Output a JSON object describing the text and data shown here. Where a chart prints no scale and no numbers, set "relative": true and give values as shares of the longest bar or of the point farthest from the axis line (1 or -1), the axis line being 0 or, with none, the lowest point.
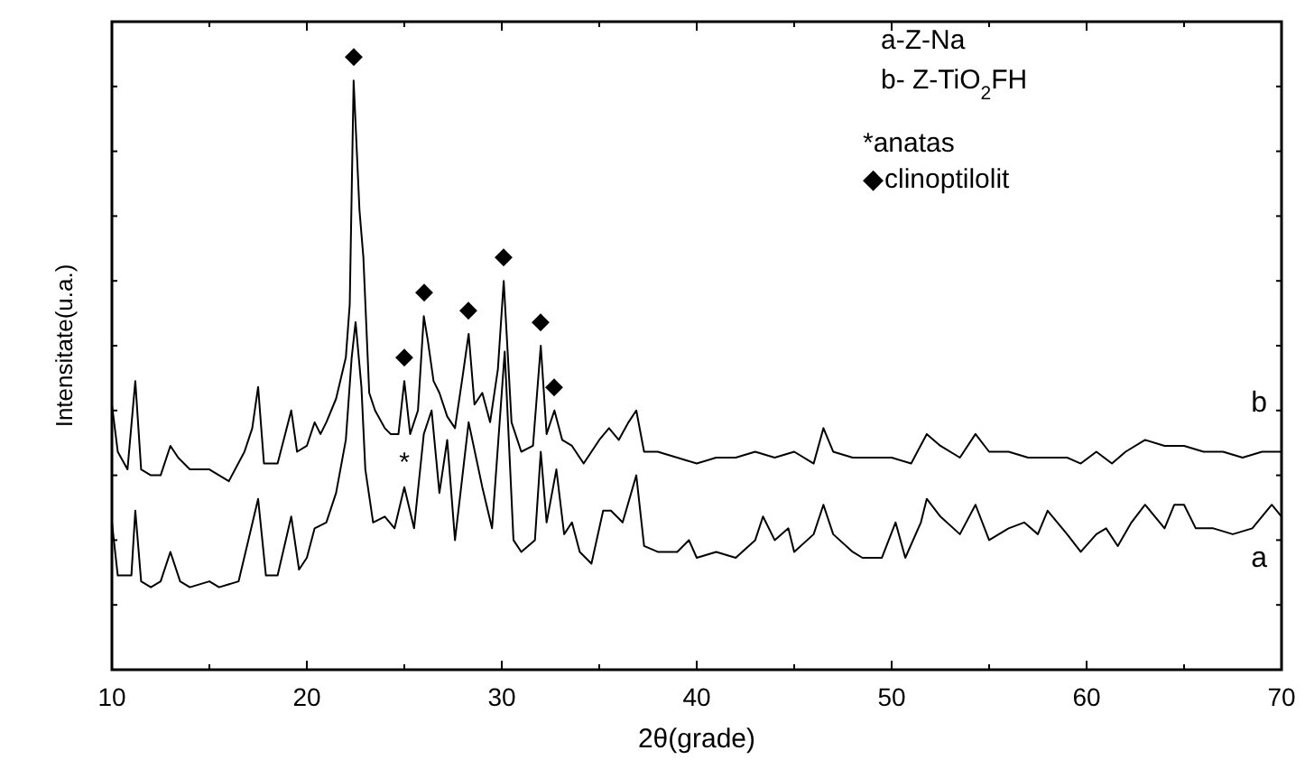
{
  "chart_data": {
    "type": "line",
    "relative": true,
    "xlabel": "2θ(grade)",
    "ylabel": "Intensitate(u.a.)",
    "xlim": [
      10,
      70
    ],
    "xticks": [
      10,
      {
        "value": 15,
        "label": null
      },
      20,
      {
        "value": 25,
        "label": null
      },
      30,
      {
        "value": 35,
        "label": null
      },
      40,
      {
        "value": 45,
        "label": null
      },
      50,
      {
        "value": 55,
        "label": null
      },
      60,
      {
        "value": 65,
        "label": null
      },
      70
    ],
    "tick_labels": "x",
    "grid": false,
    "legend": "right",
    "line_style": "solid",
    "series": [
      {
        "name": "b",
        "color": "#000000",
        "x": [
          10,
          10.3,
          10.8,
          11.2,
          11.5,
          12,
          12.5,
          13,
          13.4,
          14,
          15,
          16,
          16.8,
          17.2,
          17.5,
          17.8,
          18.5,
          19.2,
          19.5,
          20,
          20.4,
          20.7,
          21,
          21.5,
          22,
          22.2,
          22.4,
          22.7,
          22.9,
          23.2,
          23.5,
          24,
          24.3,
          24.7,
          25,
          25.3,
          25.7,
          26,
          26.2,
          26.5,
          26.8,
          27.2,
          27.6,
          28,
          28.3,
          28.6,
          29,
          29.4,
          29.8,
          30.1,
          30.5,
          31,
          31.6,
          32,
          32.3,
          32.7,
          33.1,
          33.6,
          34.2,
          35,
          35.5,
          36,
          36.5,
          36.9,
          37.3,
          38,
          39,
          40,
          41,
          42,
          43,
          44,
          45,
          46,
          46.5,
          47,
          48,
          49,
          50,
          51,
          51.8,
          52.5,
          53.5,
          54.3,
          55,
          56,
          57,
          58,
          59,
          59.7,
          60.5,
          61.3,
          62,
          63,
          64,
          65,
          66,
          67,
          68,
          69,
          70
        ],
        "values": [
          0.45,
          0.37,
          0.34,
          0.49,
          0.34,
          0.33,
          0.33,
          0.38,
          0.36,
          0.34,
          0.34,
          0.32,
          0.37,
          0.41,
          0.48,
          0.35,
          0.35,
          0.44,
          0.37,
          0.38,
          0.42,
          0.4,
          0.42,
          0.46,
          0.53,
          0.62,
          1,
          0.78,
          0.7,
          0.47,
          0.44,
          0.41,
          0.4,
          0.4,
          0.49,
          0.4,
          0.44,
          0.6,
          0.56,
          0.49,
          0.47,
          0.43,
          0.41,
          0.5,
          0.57,
          0.45,
          0.47,
          0.42,
          0.51,
          0.66,
          0.42,
          0.37,
          0.38,
          0.55,
          0.4,
          0.44,
          0.39,
          0.38,
          0.35,
          0.39,
          0.41,
          0.39,
          0.42,
          0.44,
          0.37,
          0.37,
          0.36,
          0.35,
          0.36,
          0.36,
          0.37,
          0.36,
          0.37,
          0.35,
          0.41,
          0.37,
          0.36,
          0.36,
          0.36,
          0.35,
          0.4,
          0.38,
          0.36,
          0.4,
          0.37,
          0.37,
          0.36,
          0.36,
          0.36,
          0.35,
          0.37,
          0.35,
          0.37,
          0.39,
          0.38,
          0.38,
          0.37,
          0.37,
          0.36,
          0.37,
          0.37
        ]
      },
      {
        "name": "a",
        "color": "#000000",
        "x": [
          10,
          10.3,
          11,
          11.2,
          11.5,
          12,
          12.5,
          13,
          13.5,
          14,
          15,
          15.5,
          16.5,
          17,
          17.5,
          17.9,
          18.5,
          19.2,
          19.6,
          20,
          20.4,
          21,
          21.5,
          22,
          22.3,
          22.5,
          22.8,
          23,
          23.4,
          24,
          24.5,
          25,
          25.5,
          26,
          26.4,
          26.8,
          27.2,
          27.6,
          28.3,
          29,
          29.5,
          30.15,
          30.6,
          31,
          31.7,
          32,
          32.3,
          32.8,
          33.2,
          33.6,
          34,
          34.6,
          35.2,
          35.6,
          36.2,
          36.9,
          37.3,
          38,
          39,
          39.6,
          40,
          41,
          42,
          43,
          43.4,
          44,
          44.7,
          45,
          46,
          46.5,
          47,
          48,
          48.5,
          49.5,
          50.2,
          50.7,
          51.5,
          51.8,
          52.5,
          53.5,
          54.3,
          55,
          56,
          56.8,
          57.5,
          58,
          59,
          59.7,
          60.5,
          61,
          61.6,
          62.3,
          63,
          64,
          64.5,
          65,
          65.6,
          66.5,
          67.5,
          68.5,
          69.5,
          70
        ],
        "values": [
          0.25,
          0.16,
          0.16,
          0.27,
          0.15,
          0.14,
          0.15,
          0.2,
          0.15,
          0.14,
          0.15,
          0.14,
          0.15,
          0.22,
          0.29,
          0.16,
          0.16,
          0.26,
          0.17,
          0.19,
          0.24,
          0.25,
          0.3,
          0.39,
          0.53,
          0.59,
          0.48,
          0.34,
          0.25,
          0.26,
          0.24,
          0.31,
          0.24,
          0.4,
          0.44,
          0.3,
          0.39,
          0.22,
          0.42,
          0.31,
          0.24,
          0.54,
          0.22,
          0.2,
          0.22,
          0.37,
          0.25,
          0.34,
          0.23,
          0.25,
          0.2,
          0.18,
          0.27,
          0.27,
          0.25,
          0.33,
          0.21,
          0.2,
          0.2,
          0.22,
          0.19,
          0.2,
          0.19,
          0.22,
          0.26,
          0.22,
          0.24,
          0.2,
          0.23,
          0.28,
          0.23,
          0.2,
          0.19,
          0.19,
          0.25,
          0.19,
          0.25,
          0.29,
          0.26,
          0.23,
          0.28,
          0.22,
          0.24,
          0.25,
          0.23,
          0.27,
          0.23,
          0.2,
          0.23,
          0.24,
          0.21,
          0.25,
          0.28,
          0.24,
          0.28,
          0.28,
          0.24,
          0.24,
          0.23,
          0.24,
          0.28,
          0.26
        ]
      }
    ],
    "annotations": [
      "a-Z-Na",
      "b- Z-TiO$_{2}$FH",
      "*anatas",
      "◆clinoptilolit",
      {
        "text": "◆",
        "x": 22.4,
        "y": 1
      },
      {
        "text": "◆",
        "x": 25,
        "y": 0.49
      },
      {
        "text": "◆",
        "x": 26,
        "y": 0.6
      },
      {
        "text": "◆",
        "x": 28.3,
        "y": 0.57
      },
      {
        "text": "◆",
        "x": 30.1,
        "y": 0.66
      },
      {
        "text": "◆",
        "x": 32,
        "y": 0.55
      },
      {
        "text": "◆",
        "x": 32.7,
        "y": 0.44
      },
      {
        "text": "*",
        "x": 25,
        "y": 0.31
      }
    ]
  }
}
